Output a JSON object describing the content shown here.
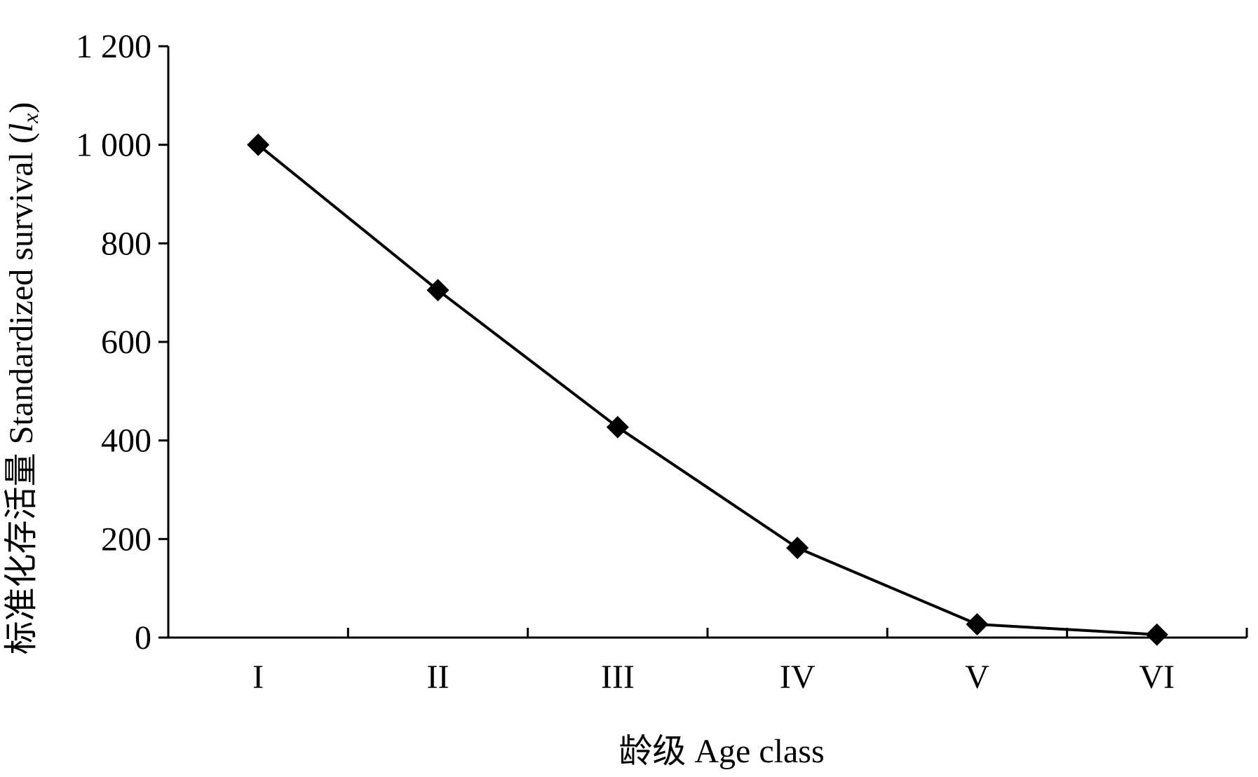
{
  "chart_data": {
    "type": "line",
    "categories": [
      "I",
      "II",
      "III",
      "IV",
      "V",
      "VI"
    ],
    "series": [
      {
        "values": [
          1000,
          705,
          427,
          182,
          27,
          6
        ],
        "color": "#000000",
        "marker": "diamond"
      }
    ],
    "xlabel": "龄级  Age class",
    "ylabel": {
      "prefix": "标准化存活量  Standardized survival (",
      "var": "l",
      "sub": "x",
      "suffix": ")"
    },
    "ylim": [
      0,
      1200
    ],
    "yticks": [
      0,
      200,
      400,
      600,
      800,
      1000,
      1200
    ],
    "ytick_labels": [
      "0",
      "200",
      "400",
      "600",
      "800",
      "1 000",
      "1 200"
    ],
    "grid": false,
    "legend": "none"
  }
}
